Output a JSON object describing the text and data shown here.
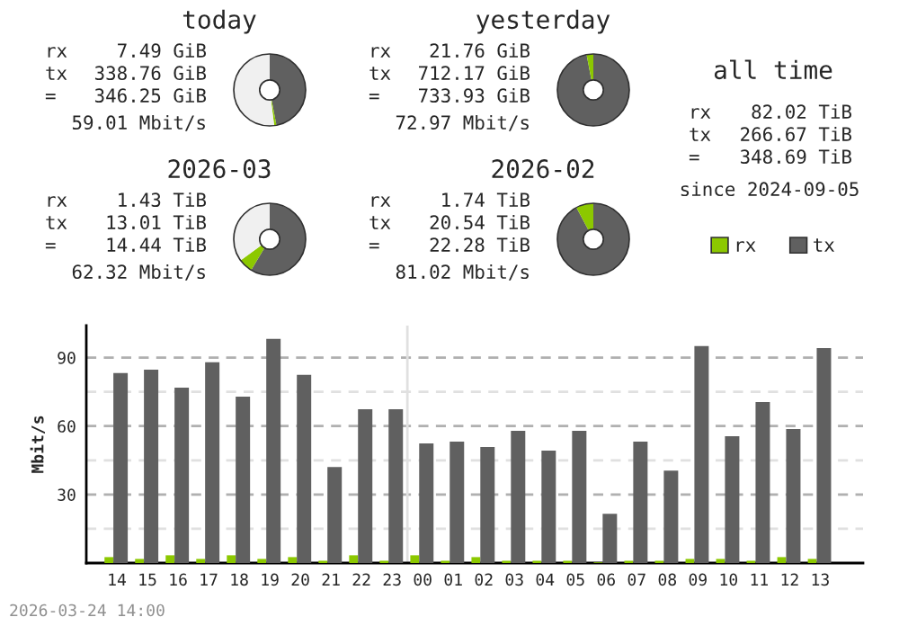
{
  "chart_data": [
    {
      "type": "donut",
      "title": "today",
      "categories": [
        null,
        null,
        null
      ],
      "values": [
        47,
        1,
        52
      ],
      "colors": [
        "#606060",
        "#8cc800",
        "#f0f0f0"
      ],
      "annotations": [
        "rx",
        "7.49 GiB",
        "tx",
        "338.76 GiB",
        "=",
        "346.25 GiB",
        "59.01 Mbit/s"
      ]
    },
    {
      "type": "donut",
      "title": "yesterday",
      "categories": [
        null,
        null,
        null
      ],
      "values": [
        97,
        3,
        0
      ],
      "colors": [
        "#606060",
        "#8cc800",
        "#f0f0f0"
      ],
      "annotations": [
        "rx",
        "21.76 GiB",
        "tx",
        "712.17 GiB",
        "=",
        "733.93 GiB",
        "72.97 Mbit/s"
      ]
    },
    {
      "type": "other",
      "title": "all time",
      "annotations": [
        "rx",
        "82.02 TiB",
        "tx",
        "266.67 TiB",
        "=",
        "348.69 TiB",
        "since 2024-09-05"
      ]
    },
    {
      "type": "donut",
      "title": "2026-03",
      "categories": [
        null,
        null,
        null
      ],
      "values": [
        58.6,
        6.4,
        35
      ],
      "colors": [
        "#606060",
        "#8cc800",
        "#f0f0f0"
      ],
      "annotations": [
        "rx",
        "1.43 TiB",
        "tx",
        "13.01 TiB",
        "=",
        "14.44 TiB",
        "62.32 Mbit/s"
      ]
    },
    {
      "type": "donut",
      "title": "2026-02",
      "categories": [
        null,
        null,
        null
      ],
      "values": [
        92.2,
        7.8,
        0
      ],
      "colors": [
        "#606060",
        "#8cc800",
        "#f0f0f0"
      ],
      "annotations": [
        "rx",
        "1.74 TiB",
        "tx",
        "20.54 TiB",
        "=",
        "22.28 TiB",
        "81.02 Mbit/s"
      ]
    },
    {
      "type": "bar",
      "ylabel": "Mbit/s",
      "legend": "top right",
      "grid": "y",
      "categories": [
        "14",
        "15",
        "16",
        "17",
        "18",
        "19",
        "20",
        "21",
        "22",
        "23",
        "00",
        "01",
        "02",
        "03",
        "04",
        "05",
        "06",
        "07",
        "08",
        "09",
        "10",
        "11",
        "12",
        "13"
      ],
      "series": [
        {
          "name": "rx",
          "color": "#8cc800",
          "values": [
            2.6,
            1.8,
            3.4,
            1.8,
            3.4,
            1.8,
            2.6,
            1,
            3.4,
            1,
            3.4,
            1,
            2.6,
            1,
            1,
            1,
            0.3,
            1,
            1,
            1.8,
            1.8,
            1,
            2.6,
            1.8
          ]
        },
        {
          "name": "tx",
          "color": "#606060",
          "values": [
            83.2,
            84.7,
            76.8,
            87.9,
            72.9,
            98.2,
            82.4,
            42.1,
            67.4,
            67.4,
            52.4,
            53.2,
            50.8,
            57.9,
            49.2,
            57.9,
            21.6,
            53.2,
            40.5,
            95.0,
            55.5,
            70.5,
            58.7,
            94.2
          ]
        }
      ],
      "ylim": [
        0,
        104
      ],
      "yticks": [
        {
          "value": 15,
          "label": null
        },
        30,
        {
          "value": 45,
          "label": null
        },
        60,
        {
          "value": 75,
          "label": null
        },
        90
      ],
      "ref_lines": [
        {
          "axis": "x",
          "value": "00",
          "color": "#e0e0e0"
        }
      ],
      "annotations": [
        "2026-03-24 14:00"
      ]
    }
  ]
}
